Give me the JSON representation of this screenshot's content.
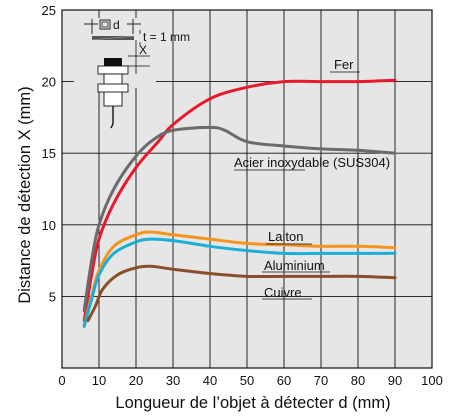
{
  "chart_data": {
    "type": "line",
    "xlabel": "Longueur de l’objet à détecter d (mm)",
    "ylabel": "Distance de détection X (mm)",
    "xlim": [
      0,
      100
    ],
    "ylim": [
      0,
      25
    ],
    "xticks": [
      0,
      10,
      20,
      30,
      40,
      50,
      60,
      70,
      80,
      90,
      100
    ],
    "yticks": [
      5,
      10,
      15,
      20,
      25
    ],
    "grid": true,
    "background": "#e6e6e6",
    "series": [
      {
        "name": "Fer",
        "color": "#e8192c",
        "x": [
          6,
          8,
          10,
          14,
          20,
          26,
          30,
          40,
          50,
          60,
          70,
          80,
          90
        ],
        "y": [
          3.3,
          6.5,
          9,
          11.5,
          14,
          15.8,
          17,
          18.8,
          19.6,
          20,
          20,
          20,
          20.1
        ]
      },
      {
        "name": "Acier inoxydable (SUS304)",
        "color": "#6b6b6b",
        "x": [
          6,
          8,
          10,
          14,
          20,
          25,
          30,
          40,
          44,
          50,
          60,
          70,
          80,
          90
        ],
        "y": [
          4,
          7.5,
          10,
          12.5,
          14.8,
          16,
          16.6,
          16.8,
          16.6,
          15.8,
          15.5,
          15.3,
          15.2,
          15
        ]
      },
      {
        "name": "Laiton",
        "color": "#f7941d",
        "x": [
          6,
          8,
          10,
          14,
          20,
          24,
          30,
          40,
          50,
          60,
          70,
          80,
          90
        ],
        "y": [
          3,
          5,
          6.8,
          8.5,
          9.3,
          9.5,
          9.3,
          9,
          8.7,
          8.6,
          8.5,
          8.5,
          8.4
        ]
      },
      {
        "name": "Aluminium",
        "color": "#1ab0d5",
        "x": [
          6,
          8,
          10,
          14,
          20,
          24,
          30,
          40,
          50,
          60,
          70,
          80,
          90
        ],
        "y": [
          2.9,
          4.8,
          6.5,
          8,
          8.8,
          9,
          8.9,
          8.5,
          8.2,
          8,
          8,
          8,
          8
        ]
      },
      {
        "name": "Cuivre",
        "color": "#8b4e2a",
        "x": [
          7,
          9,
          11,
          15,
          20,
          24,
          30,
          40,
          50,
          60,
          70,
          80,
          90
        ],
        "y": [
          3.3,
          4.3,
          5.5,
          6.5,
          7,
          7.1,
          6.9,
          6.6,
          6.4,
          6.4,
          6.4,
          6.4,
          6.3
        ]
      }
    ],
    "label_text": {
      "fer": "Fer",
      "acier": "Acier inoxydable (SUS304)",
      "laiton": "Laiton",
      "aluminium": "Aluminium",
      "cuivre": "Cuivre"
    },
    "inset": {
      "d_label": "d",
      "t_label": "t = 1 mm",
      "x_label": "X"
    }
  }
}
